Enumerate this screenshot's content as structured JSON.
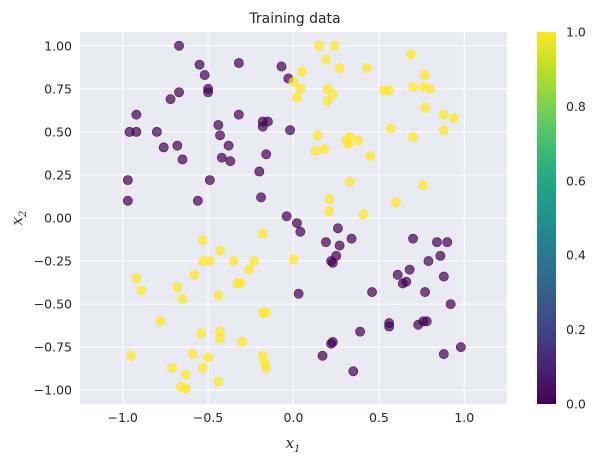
{
  "chart_data": {
    "type": "scatter",
    "title": "Training data",
    "xlabel": "x",
    "xlabel_sub": "1",
    "ylabel": "x",
    "ylabel_sub": "2",
    "xlim": [
      -1.25,
      1.25
    ],
    "ylim": [
      -1.08,
      1.08
    ],
    "x_ticks": [
      -1.0,
      -0.5,
      0.0,
      0.5,
      1.0
    ],
    "x_tick_labels": [
      "−1.0",
      "−0.5",
      "0.0",
      "0.5",
      "1.0"
    ],
    "y_ticks": [
      1.0,
      0.75,
      0.5,
      0.25,
      0.0,
      -0.25,
      -0.5,
      -0.75,
      -1.0
    ],
    "y_tick_labels": [
      "1.00",
      "0.75",
      "0.50",
      "0.25",
      "0.00",
      "−0.25",
      "−0.50",
      "−0.75",
      "−1.00"
    ],
    "grid": true,
    "colormap": "viridis",
    "alpha": 0.7,
    "colorbar": {
      "range": [
        0.0,
        1.0
      ],
      "ticks": [
        0.0,
        0.2,
        0.4,
        0.6,
        0.8,
        1.0
      ],
      "tick_labels": [
        "0.0",
        "0.2",
        "0.4",
        "0.6",
        "0.8",
        "1.0"
      ]
    },
    "colors": {
      "class_0": "#440154",
      "class_1": "#fde725",
      "plot_background": "#eaeaf2",
      "grid": "#ffffff"
    },
    "points": [
      {
        "x": -0.67,
        "y": 1.0,
        "c": 0
      },
      {
        "x": -0.55,
        "y": 0.89,
        "c": 0
      },
      {
        "x": -0.52,
        "y": 0.83,
        "c": 0
      },
      {
        "x": -0.5,
        "y": 0.75,
        "c": 0
      },
      {
        "x": -0.5,
        "y": 0.73,
        "c": 0
      },
      {
        "x": -0.67,
        "y": 0.73,
        "c": 0
      },
      {
        "x": -0.72,
        "y": 0.69,
        "c": 0
      },
      {
        "x": -0.32,
        "y": 0.9,
        "c": 0
      },
      {
        "x": -0.07,
        "y": 0.88,
        "c": 0
      },
      {
        "x": -0.03,
        "y": 0.81,
        "c": 0
      },
      {
        "x": -0.92,
        "y": 0.6,
        "c": 0
      },
      {
        "x": -0.96,
        "y": 0.5,
        "c": 0
      },
      {
        "x": -0.92,
        "y": 0.5,
        "c": 0
      },
      {
        "x": -0.8,
        "y": 0.5,
        "c": 0
      },
      {
        "x": -0.76,
        "y": 0.41,
        "c": 0
      },
      {
        "x": -0.68,
        "y": 0.42,
        "c": 0
      },
      {
        "x": -0.65,
        "y": 0.34,
        "c": 0
      },
      {
        "x": -0.44,
        "y": 0.54,
        "c": 0
      },
      {
        "x": -0.43,
        "y": 0.48,
        "c": 0
      },
      {
        "x": -0.38,
        "y": 0.42,
        "c": 0
      },
      {
        "x": -0.32,
        "y": 0.6,
        "c": 0
      },
      {
        "x": -0.18,
        "y": 0.56,
        "c": 0
      },
      {
        "x": -0.18,
        "y": 0.53,
        "c": 0
      },
      {
        "x": -0.15,
        "y": 0.56,
        "c": 0
      },
      {
        "x": -0.02,
        "y": 0.51,
        "c": 0
      },
      {
        "x": -0.42,
        "y": 0.35,
        "c": 0
      },
      {
        "x": -0.37,
        "y": 0.33,
        "c": 0
      },
      {
        "x": -0.16,
        "y": 0.37,
        "c": 0
      },
      {
        "x": -0.2,
        "y": 0.27,
        "c": 0
      },
      {
        "x": -0.97,
        "y": 0.22,
        "c": 0
      },
      {
        "x": -0.97,
        "y": 0.1,
        "c": 0
      },
      {
        "x": -0.49,
        "y": 0.22,
        "c": 0
      },
      {
        "x": -0.56,
        "y": 0.1,
        "c": 0
      },
      {
        "x": -0.19,
        "y": 0.12,
        "c": 0
      },
      {
        "x": -0.04,
        "y": 0.01,
        "c": 0
      },
      {
        "x": 0.02,
        "y": -0.03,
        "c": 0
      },
      {
        "x": 0.04,
        "y": -0.08,
        "c": 0
      },
      {
        "x": 0.26,
        "y": -0.06,
        "c": 0
      },
      {
        "x": 0.19,
        "y": -0.14,
        "c": 0
      },
      {
        "x": 0.27,
        "y": -0.16,
        "c": 0
      },
      {
        "x": 0.34,
        "y": -0.12,
        "c": 0
      },
      {
        "x": 0.25,
        "y": -0.22,
        "c": 0
      },
      {
        "x": 0.22,
        "y": -0.25,
        "c": 0
      },
      {
        "x": 0.23,
        "y": -0.26,
        "c": 0
      },
      {
        "x": 0.7,
        "y": -0.12,
        "c": 0
      },
      {
        "x": 0.84,
        "y": -0.14,
        "c": 0
      },
      {
        "x": 0.9,
        "y": -0.14,
        "c": 0
      },
      {
        "x": 0.86,
        "y": -0.22,
        "c": 0
      },
      {
        "x": 0.79,
        "y": -0.25,
        "c": 0
      },
      {
        "x": 0.68,
        "y": -0.3,
        "c": 0
      },
      {
        "x": 0.61,
        "y": -0.33,
        "c": 0
      },
      {
        "x": 0.66,
        "y": -0.37,
        "c": 0
      },
      {
        "x": 0.64,
        "y": -0.38,
        "c": 0
      },
      {
        "x": 0.88,
        "y": -0.34,
        "c": 0
      },
      {
        "x": 0.77,
        "y": -0.43,
        "c": 0
      },
      {
        "x": 0.03,
        "y": -0.44,
        "c": 0
      },
      {
        "x": 0.46,
        "y": -0.43,
        "c": 0
      },
      {
        "x": 0.92,
        "y": -0.5,
        "c": 0
      },
      {
        "x": 0.56,
        "y": -0.61,
        "c": 0
      },
      {
        "x": 0.56,
        "y": -0.63,
        "c": 0
      },
      {
        "x": 0.78,
        "y": -0.6,
        "c": 0
      },
      {
        "x": 0.76,
        "y": -0.6,
        "c": 0
      },
      {
        "x": 0.73,
        "y": -0.62,
        "c": 0
      },
      {
        "x": 0.39,
        "y": -0.66,
        "c": 0
      },
      {
        "x": 0.23,
        "y": -0.72,
        "c": 0
      },
      {
        "x": 0.22,
        "y": -0.73,
        "c": 0
      },
      {
        "x": 0.17,
        "y": -0.8,
        "c": 0
      },
      {
        "x": 0.98,
        "y": -0.75,
        "c": 0
      },
      {
        "x": 0.88,
        "y": -0.79,
        "c": 0
      },
      {
        "x": 0.35,
        "y": -0.89,
        "c": 0
      },
      {
        "x": 0.15,
        "y": 1.0,
        "c": 1
      },
      {
        "x": 0.24,
        "y": 1.0,
        "c": 1
      },
      {
        "x": 0.19,
        "y": 0.92,
        "c": 1
      },
      {
        "x": 0.27,
        "y": 0.87,
        "c": 1
      },
      {
        "x": 0.05,
        "y": 0.85,
        "c": 1
      },
      {
        "x": 0.0,
        "y": 0.79,
        "c": 1
      },
      {
        "x": 0.04,
        "y": 0.75,
        "c": 1
      },
      {
        "x": 0.02,
        "y": 0.7,
        "c": 1
      },
      {
        "x": 0.2,
        "y": 0.75,
        "c": 1
      },
      {
        "x": 0.23,
        "y": 0.72,
        "c": 1
      },
      {
        "x": 0.2,
        "y": 0.68,
        "c": 1
      },
      {
        "x": 0.43,
        "y": 0.87,
        "c": 1
      },
      {
        "x": 0.69,
        "y": 0.95,
        "c": 1
      },
      {
        "x": 0.77,
        "y": 0.83,
        "c": 1
      },
      {
        "x": 0.76,
        "y": 0.76,
        "c": 1
      },
      {
        "x": 0.8,
        "y": 0.75,
        "c": 1
      },
      {
        "x": 0.7,
        "y": 0.76,
        "c": 1
      },
      {
        "x": 0.56,
        "y": 0.74,
        "c": 1
      },
      {
        "x": 0.53,
        "y": 0.74,
        "c": 1
      },
      {
        "x": 0.77,
        "y": 0.64,
        "c": 1
      },
      {
        "x": 0.88,
        "y": 0.6,
        "c": 1
      },
      {
        "x": 0.94,
        "y": 0.58,
        "c": 1
      },
      {
        "x": 0.57,
        "y": 0.52,
        "c": 1
      },
      {
        "x": 0.88,
        "y": 0.51,
        "c": 1
      },
      {
        "x": 0.7,
        "y": 0.47,
        "c": 1
      },
      {
        "x": 0.14,
        "y": 0.48,
        "c": 1
      },
      {
        "x": 0.31,
        "y": 0.45,
        "c": 1
      },
      {
        "x": 0.33,
        "y": 0.47,
        "c": 1
      },
      {
        "x": 0.38,
        "y": 0.45,
        "c": 1
      },
      {
        "x": 0.32,
        "y": 0.43,
        "c": 1
      },
      {
        "x": 0.13,
        "y": 0.39,
        "c": 1
      },
      {
        "x": 0.18,
        "y": 0.4,
        "c": 1
      },
      {
        "x": 0.45,
        "y": 0.36,
        "c": 1
      },
      {
        "x": 0.33,
        "y": 0.21,
        "c": 1
      },
      {
        "x": 0.76,
        "y": 0.19,
        "c": 1
      },
      {
        "x": 0.21,
        "y": 0.11,
        "c": 1
      },
      {
        "x": 0.6,
        "y": 0.09,
        "c": 1
      },
      {
        "x": 0.21,
        "y": 0.04,
        "c": 1
      },
      {
        "x": 0.41,
        "y": 0.02,
        "c": 1
      },
      {
        "x": -0.53,
        "y": -0.13,
        "c": 1
      },
      {
        "x": -0.43,
        "y": -0.19,
        "c": 1
      },
      {
        "x": -0.18,
        "y": -0.09,
        "c": 1
      },
      {
        "x": -0.53,
        "y": -0.25,
        "c": 1
      },
      {
        "x": -0.49,
        "y": -0.25,
        "c": 1
      },
      {
        "x": -0.35,
        "y": -0.25,
        "c": 1
      },
      {
        "x": -0.23,
        "y": -0.25,
        "c": 1
      },
      {
        "x": 0.0,
        "y": -0.24,
        "c": 1
      },
      {
        "x": -0.92,
        "y": -0.35,
        "c": 1
      },
      {
        "x": -0.58,
        "y": -0.33,
        "c": 1
      },
      {
        "x": -0.26,
        "y": -0.3,
        "c": 1
      },
      {
        "x": -0.89,
        "y": -0.42,
        "c": 1
      },
      {
        "x": -0.68,
        "y": -0.4,
        "c": 1
      },
      {
        "x": -0.33,
        "y": -0.38,
        "c": 1
      },
      {
        "x": -0.31,
        "y": -0.38,
        "c": 1
      },
      {
        "x": -0.44,
        "y": -0.45,
        "c": 1
      },
      {
        "x": -0.65,
        "y": -0.47,
        "c": 1
      },
      {
        "x": -0.18,
        "y": -0.55,
        "c": 1
      },
      {
        "x": -0.16,
        "y": -0.55,
        "c": 1
      },
      {
        "x": -0.78,
        "y": -0.6,
        "c": 1
      },
      {
        "x": -0.43,
        "y": -0.66,
        "c": 1
      },
      {
        "x": -0.54,
        "y": -0.67,
        "c": 1
      },
      {
        "x": -0.43,
        "y": -0.7,
        "c": 1
      },
      {
        "x": -0.3,
        "y": -0.72,
        "c": 1
      },
      {
        "x": -0.95,
        "y": -0.8,
        "c": 1
      },
      {
        "x": -0.59,
        "y": -0.79,
        "c": 1
      },
      {
        "x": -0.5,
        "y": -0.81,
        "c": 1
      },
      {
        "x": -0.18,
        "y": -0.8,
        "c": 1
      },
      {
        "x": -0.17,
        "y": -0.84,
        "c": 1
      },
      {
        "x": -0.71,
        "y": -0.87,
        "c": 1
      },
      {
        "x": -0.53,
        "y": -0.87,
        "c": 1
      },
      {
        "x": -0.16,
        "y": -0.87,
        "c": 1
      },
      {
        "x": -0.63,
        "y": -0.91,
        "c": 1
      },
      {
        "x": -0.44,
        "y": -0.95,
        "c": 1
      },
      {
        "x": -0.66,
        "y": -0.98,
        "c": 1
      },
      {
        "x": -0.63,
        "y": -0.99,
        "c": 1
      }
    ]
  }
}
